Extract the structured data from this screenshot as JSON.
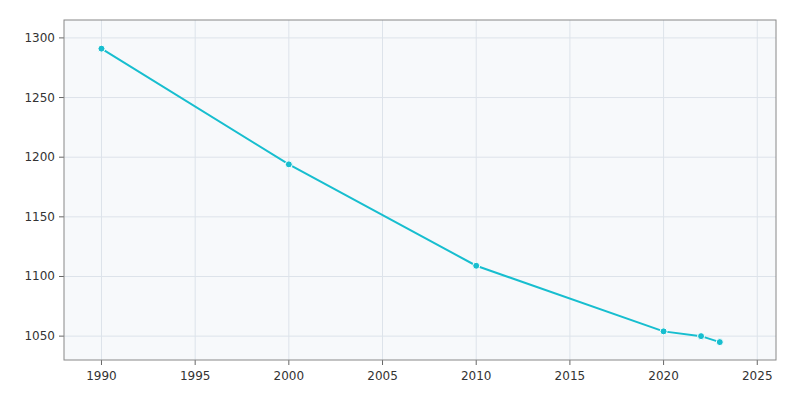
{
  "chart_data": {
    "type": "line",
    "x": [
      1990,
      2000,
      2010,
      2020,
      2022,
      2023
    ],
    "values": [
      1291,
      1194,
      1109,
      1054,
      1050,
      1045
    ],
    "color": "#17becf",
    "marker": "circle",
    "xlim": [
      1988,
      2026
    ],
    "ylim": [
      1030,
      1315
    ],
    "xticks": [
      1990,
      1995,
      2000,
      2005,
      2010,
      2015,
      2020,
      2025
    ],
    "yticks": [
      1050,
      1100,
      1150,
      1200,
      1250,
      1300
    ],
    "grid": true
  }
}
